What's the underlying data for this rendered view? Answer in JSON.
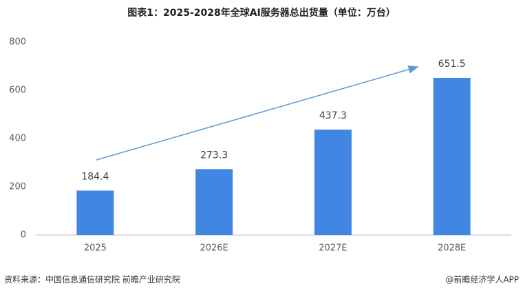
{
  "chart_data": {
    "type": "bar",
    "title": "图表1：2025-2028年全球AI服务器总出货量（单位：万台）",
    "categories": [
      "2025",
      "2026E",
      "2027E",
      "2028E"
    ],
    "values": [
      184.4,
      273.3,
      437.3,
      651.5
    ],
    "color": "#4186e3",
    "ylim": [
      0,
      800
    ],
    "yticks": [
      0,
      200,
      400,
      600,
      800
    ],
    "grid": false
  },
  "footer": {
    "source": "资料来源：中国信息通信研究院  前瞻产业研究院",
    "credit": "@前瞻经济学人APP"
  }
}
